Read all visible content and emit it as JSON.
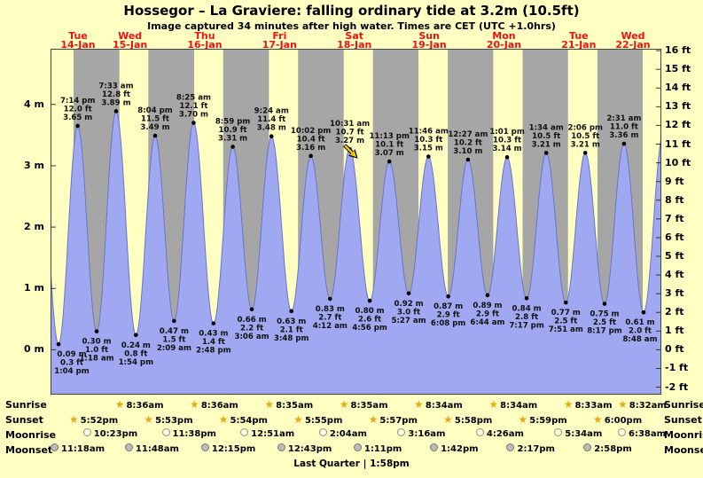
{
  "title": "Hossegor – La Graviere: falling  ordinary tide at 3.2m (10.5ft)",
  "subtitle": "Image captured 34 minutes after high water. Times are CET (UTC +1.0hrs)",
  "colors": {
    "background": "#ffffc2",
    "day_band": "#ffffc2",
    "night_band": "#a6a6a6",
    "curve_fill": "#9fa8f0",
    "curve_stroke": "#6a74c8",
    "day_label_red": "#ee1111",
    "star_gold": "#e8a817",
    "arrow_yellow": "#f2c40f",
    "moonrise_fill": "#ffffdd",
    "moonset_fill": "#bbbbbb",
    "text": "#000000"
  },
  "chart_data": {
    "type": "area",
    "title": "Hossegor – La Graviere tide curve",
    "x_axis": {
      "start_hour": 10.5,
      "end_hour": 206.5,
      "unit": "hours from Tue 14-Jan 00:00",
      "grid": false
    },
    "y_axis_left": {
      "unit": "m",
      "ticks": [
        {
          "v": 4,
          "label": "4 m"
        },
        {
          "v": 3,
          "label": "3 m"
        },
        {
          "v": 2,
          "label": "2 m"
        },
        {
          "v": 1,
          "label": "1 m"
        },
        {
          "v": 0,
          "label": "0 m"
        }
      ]
    },
    "y_axis_right": {
      "unit": "ft",
      "ticks": [
        {
          "v": 16,
          "label": "16 ft"
        },
        {
          "v": 15,
          "label": "15 ft"
        },
        {
          "v": 14,
          "label": "14 ft"
        },
        {
          "v": 13,
          "label": "13 ft"
        },
        {
          "v": 12,
          "label": "12 ft"
        },
        {
          "v": 11,
          "label": "11 ft"
        },
        {
          "v": 10,
          "label": "10 ft"
        },
        {
          "v": 9,
          "label": "9 ft"
        },
        {
          "v": 8,
          "label": "8 ft"
        },
        {
          "v": 7,
          "label": "7 ft"
        },
        {
          "v": 6,
          "label": "6 ft"
        },
        {
          "v": 5,
          "label": "5 ft"
        },
        {
          "v": 4,
          "label": "4 ft"
        },
        {
          "v": 3,
          "label": "3 ft"
        },
        {
          "v": 2,
          "label": "2 ft"
        },
        {
          "v": 1,
          "label": "1 ft"
        },
        {
          "v": 0,
          "label": "0 ft"
        },
        {
          "v": -1,
          "label": "-1 ft"
        },
        {
          "v": -2,
          "label": "-2 ft"
        }
      ]
    },
    "days": [
      {
        "dow": "Tue",
        "date": "14-Jan"
      },
      {
        "dow": "Wed",
        "date": "15-Jan"
      },
      {
        "dow": "Thu",
        "date": "16-Jan"
      },
      {
        "dow": "Fri",
        "date": "17-Jan"
      },
      {
        "dow": "Sat",
        "date": "18-Jan"
      },
      {
        "dow": "Sun",
        "date": "19-Jan"
      },
      {
        "dow": "Mon",
        "date": "20-Jan"
      },
      {
        "dow": "Tue",
        "date": "21-Jan"
      },
      {
        "dow": "Wed",
        "date": "22-Jan"
      }
    ],
    "tides": [
      {
        "type": "low",
        "t": 13.07,
        "m": 0.09,
        "m_label": "0.09 m",
        "ft_label": "0.3 ft",
        "time": "1:04 pm"
      },
      {
        "type": "high",
        "t": 19.23,
        "m": 3.65,
        "m_label": "3.65 m",
        "ft_label": "12.0 ft",
        "time": "7:14 pm"
      },
      {
        "type": "low",
        "t": 25.3,
        "m": 0.3,
        "m_label": "0.30 m",
        "ft_label": "1.0 ft",
        "time": "1:18 am"
      },
      {
        "type": "high",
        "t": 31.55,
        "m": 3.89,
        "m_label": "3.89 m",
        "ft_label": "12.8 ft",
        "time": "7:33 am"
      },
      {
        "type": "low",
        "t": 37.9,
        "m": 0.24,
        "m_label": "0.24 m",
        "ft_label": "0.8 ft",
        "time": "1:54 pm"
      },
      {
        "type": "high",
        "t": 44.07,
        "m": 3.49,
        "m_label": "3.49 m",
        "ft_label": "11.5 ft",
        "time": "8:04 pm"
      },
      {
        "type": "low",
        "t": 50.15,
        "m": 0.47,
        "m_label": "0.47 m",
        "ft_label": "1.5 ft",
        "time": "2:09 am"
      },
      {
        "type": "high",
        "t": 56.42,
        "m": 3.7,
        "m_label": "3.70 m",
        "ft_label": "12.1 ft",
        "time": "8:25 am"
      },
      {
        "type": "low",
        "t": 62.8,
        "m": 0.43,
        "m_label": "0.43 m",
        "ft_label": "1.4 ft",
        "time": "2:48 pm"
      },
      {
        "type": "high",
        "t": 68.98,
        "m": 3.31,
        "m_label": "3.31 m",
        "ft_label": "10.9 ft",
        "time": "8:59 pm"
      },
      {
        "type": "low",
        "t": 75.1,
        "m": 0.66,
        "m_label": "0.66 m",
        "ft_label": "2.2 ft",
        "time": "3:06 am"
      },
      {
        "type": "high",
        "t": 81.4,
        "m": 3.48,
        "m_label": "3.48 m",
        "ft_label": "11.4 ft",
        "time": "9:24 am"
      },
      {
        "type": "low",
        "t": 87.8,
        "m": 0.63,
        "m_label": "0.63 m",
        "ft_label": "2.1 ft",
        "time": "3:48 pm"
      },
      {
        "type": "high",
        "t": 94.03,
        "m": 3.16,
        "m_label": "3.16 m",
        "ft_label": "10.4 ft",
        "time": "10:02 pm"
      },
      {
        "type": "low",
        "t": 100.2,
        "m": 0.83,
        "m_label": "0.83 m",
        "ft_label": "2.7 ft",
        "time": "4:12 am"
      },
      {
        "type": "high",
        "t": 106.52,
        "m": 3.27,
        "m_label": "3.27 m",
        "ft_label": "10.7 ft",
        "time": "10:31 am",
        "current": true
      },
      {
        "type": "low",
        "t": 112.93,
        "m": 0.8,
        "m_label": "0.80 m",
        "ft_label": "2.6 ft",
        "time": "4:56 pm"
      },
      {
        "type": "high",
        "t": 119.22,
        "m": 3.07,
        "m_label": "3.07 m",
        "ft_label": "10.1 ft",
        "time": "11:13 pm"
      },
      {
        "type": "low",
        "t": 125.45,
        "m": 0.92,
        "m_label": "0.92 m",
        "ft_label": "3.0 ft",
        "time": "5:27 am"
      },
      {
        "type": "high",
        "t": 131.77,
        "m": 3.15,
        "m_label": "3.15 m",
        "ft_label": "10.3 ft",
        "time": "11:46 am"
      },
      {
        "type": "low",
        "t": 138.13,
        "m": 0.87,
        "m_label": "0.87 m",
        "ft_label": "2.9 ft",
        "time": "6:08 pm"
      },
      {
        "type": "high",
        "t": 144.45,
        "m": 3.1,
        "m_label": "3.10 m",
        "ft_label": "10.2 ft",
        "time": "12:27 am"
      },
      {
        "type": "low",
        "t": 150.73,
        "m": 0.89,
        "m_label": "0.89 m",
        "ft_label": "2.9 ft",
        "time": "6:44 am"
      },
      {
        "type": "high",
        "t": 157.02,
        "m": 3.14,
        "m_label": "3.14 m",
        "ft_label": "10.3 ft",
        "time": "1:01 pm"
      },
      {
        "type": "low",
        "t": 163.28,
        "m": 0.84,
        "m_label": "0.84 m",
        "ft_label": "2.8 ft",
        "time": "7:17 pm"
      },
      {
        "type": "high",
        "t": 169.57,
        "m": 3.21,
        "m_label": "3.21 m",
        "ft_label": "10.5 ft",
        "time": "1:34 am"
      },
      {
        "type": "low",
        "t": 175.85,
        "m": 0.77,
        "m_label": "0.77 m",
        "ft_label": "2.5 ft",
        "time": "7:51 am"
      },
      {
        "type": "high",
        "t": 182.1,
        "m": 3.21,
        "m_label": "3.21 m",
        "ft_label": "10.5 ft",
        "time": "2:06 pm"
      },
      {
        "type": "low",
        "t": 188.28,
        "m": 0.75,
        "m_label": "0.75 m",
        "ft_label": "2.5 ft",
        "time": "8:17 pm"
      },
      {
        "type": "high",
        "t": 194.52,
        "m": 3.36,
        "m_label": "3.36 m",
        "ft_label": "11.0 ft",
        "time": "2:31 am"
      },
      {
        "type": "low",
        "t": 200.8,
        "m": 0.61,
        "m_label": "0.61 m",
        "ft_label": "2.0 ft",
        "time": "8:48 am"
      }
    ],
    "boundary": {
      "prev_high": {
        "t": 6.8,
        "m": 3.55
      },
      "next_high": {
        "t": 207.2,
        "m": 3.55
      }
    },
    "current_marker": {
      "t": 107.1,
      "m": 3.22,
      "note": "34 minutes after high water, tide falling"
    },
    "sun_moon": {
      "sunrise": {
        "label": "Sunrise",
        "entries": [
          {
            "time": "8:36am",
            "t": 32.6
          },
          {
            "time": "8:36am",
            "t": 56.6
          },
          {
            "time": "8:35am",
            "t": 80.58
          },
          {
            "time": "8:35am",
            "t": 104.58
          },
          {
            "time": "8:34am",
            "t": 128.57
          },
          {
            "time": "8:34am",
            "t": 152.57
          },
          {
            "time": "8:33am",
            "t": 176.55
          },
          {
            "time": "8:32am",
            "t": 200.53
          }
        ]
      },
      "sunset": {
        "label": "Sunset",
        "entries": [
          {
            "time": "5:52pm",
            "t": 17.87
          },
          {
            "time": "5:53pm",
            "t": 41.88
          },
          {
            "time": "5:54pm",
            "t": 65.9
          },
          {
            "time": "5:55pm",
            "t": 89.92
          },
          {
            "time": "5:57pm",
            "t": 113.95
          },
          {
            "time": "5:58pm",
            "t": 137.97
          },
          {
            "time": "5:59pm",
            "t": 161.98
          },
          {
            "time": "6:00pm",
            "t": 186.0
          }
        ]
      },
      "moonrise": {
        "label": "Moonrise",
        "entries": [
          {
            "time": "10:23pm",
            "t": 22.38
          },
          {
            "time": "11:38pm",
            "t": 47.63
          },
          {
            "time": "12:51am",
            "t": 72.85
          },
          {
            "time": "2:04am",
            "t": 98.07
          },
          {
            "time": "3:16am",
            "t": 123.27
          },
          {
            "time": "4:26am",
            "t": 148.43
          },
          {
            "time": "5:34am",
            "t": 173.57
          },
          {
            "time": "6:38am",
            "t": 198.63
          }
        ]
      },
      "moonset": {
        "label": "Moonset",
        "entries": [
          {
            "time": "11:18am",
            "t": 11.3
          },
          {
            "time": "11:48am",
            "t": 35.8
          },
          {
            "time": "12:15pm",
            "t": 60.25
          },
          {
            "time": "12:43pm",
            "t": 84.72
          },
          {
            "time": "1:11pm",
            "t": 109.18
          },
          {
            "time": "1:42pm",
            "t": 133.7
          },
          {
            "time": "2:17pm",
            "t": 158.28
          },
          {
            "time": "2:58pm",
            "t": 182.97
          }
        ]
      }
    },
    "moon_phase": "Last Quarter | 1:58pm"
  }
}
